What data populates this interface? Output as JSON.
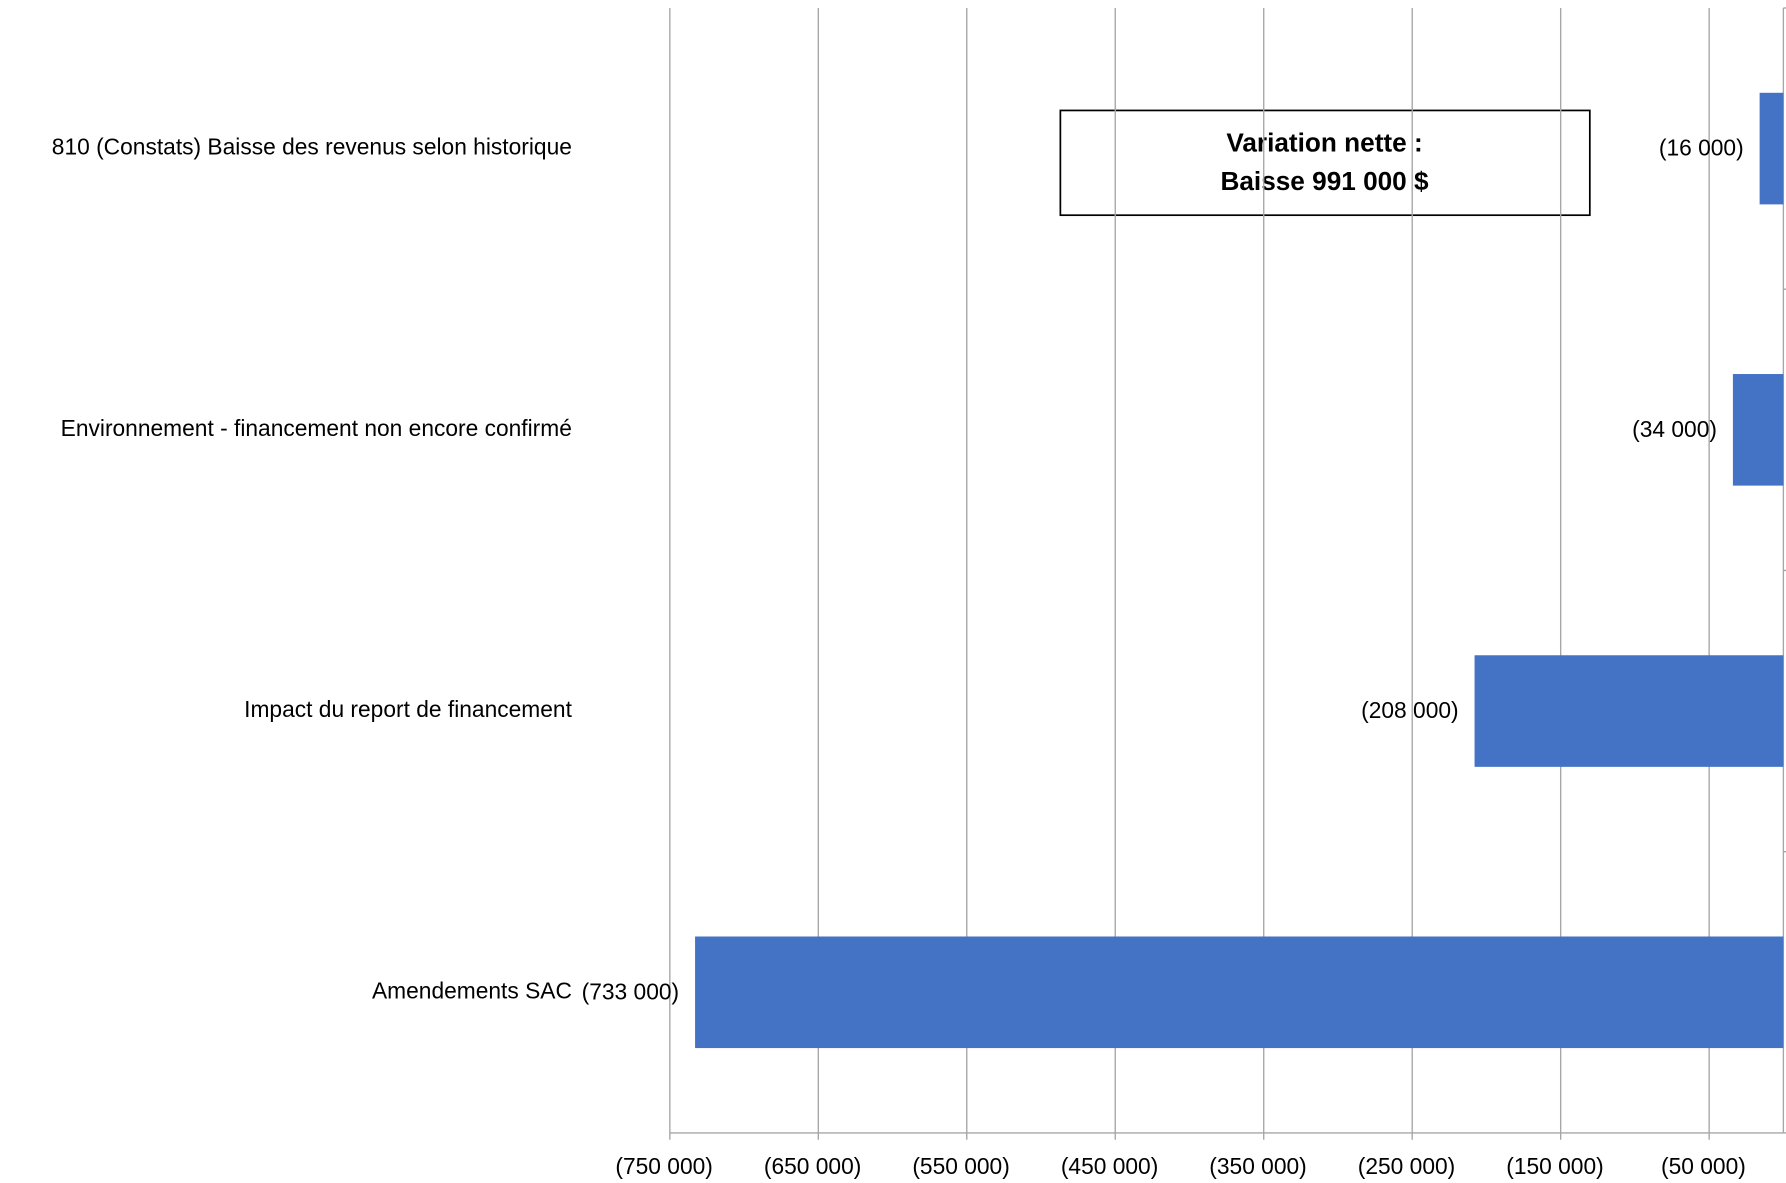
{
  "chart_data": {
    "type": "barh",
    "categories": [
      "810 (Constats) Baisse des revenus selon historique",
      "Environnement - financement non encore confirmé",
      "Impact du report de financement",
      "Amendements SAC"
    ],
    "values": [
      -16000,
      -34000,
      -208000,
      -733000
    ],
    "value_labels": [
      "(16 000)",
      "(34 000)",
      "(208 000)",
      "(733 000)"
    ],
    "color": "#4472c4",
    "xlim": [
      -750000,
      0
    ],
    "xticks": [
      {
        "value": -750000,
        "label": "(750 000)"
      },
      {
        "value": -650000,
        "label": "(650 000)"
      },
      {
        "value": -550000,
        "label": "(550 000)"
      },
      {
        "value": -450000,
        "label": "(450 000)"
      },
      {
        "value": -350000,
        "label": "(350 000)"
      },
      {
        "value": -250000,
        "label": "(250 000)"
      },
      {
        "value": -150000,
        "label": "(150 000)"
      },
      {
        "value": -50000,
        "label": "(50 000)"
      }
    ],
    "grid": true,
    "annotation": [
      "Variation nette :",
      "Baisse 991 000 $"
    ]
  }
}
